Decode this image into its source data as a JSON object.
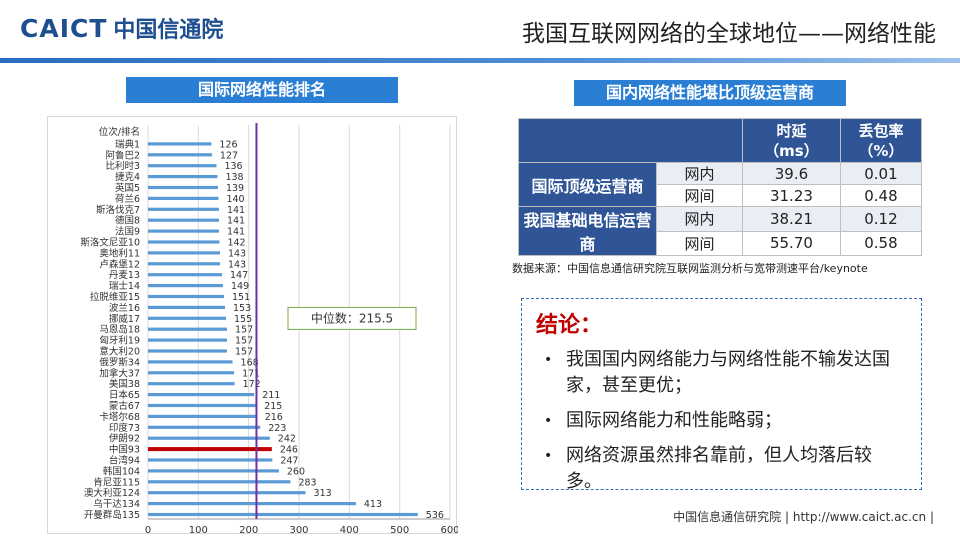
{
  "header": {
    "logo_en": "CAICT",
    "logo_cn": "中国信通院",
    "title": "我国互联网网络的全球地位——网络性能"
  },
  "left_label": "国际网络性能排名",
  "right_label": "国内网络性能堪比顶级运营商",
  "chart_data": {
    "type": "bar",
    "orientation": "horizontal",
    "category_header": "位次/排名",
    "categories": [
      "瑞典1",
      "阿鲁巴2",
      "比利时3",
      "捷克4",
      "英国5",
      "荷兰6",
      "斯洛伐克7",
      "德国8",
      "法国9",
      "斯洛文尼亚10",
      "奥地利11",
      "卢森堡12",
      "丹麦13",
      "瑞士14",
      "拉脱维亚15",
      "波兰16",
      "挪威17",
      "马恩岛18",
      "匈牙利19",
      "意大利20",
      "俄罗斯34",
      "加拿大37",
      "美国38",
      "日本65",
      "蒙古67",
      "卡塔尔68",
      "印度73",
      "伊朗92",
      "中国93",
      "台湾94",
      "韩国104",
      "肯尼亚115",
      "澳大利亚124",
      "乌干达134",
      "开曼群岛135"
    ],
    "values": [
      126,
      127,
      136,
      138,
      139,
      140,
      141,
      141,
      141,
      142,
      143,
      143,
      147,
      149,
      151,
      153,
      155,
      157,
      157,
      157,
      168,
      171,
      172,
      211,
      215,
      216,
      223,
      242,
      246,
      247,
      260,
      283,
      313,
      413,
      536
    ],
    "highlight_category": "中国93",
    "xlim": [
      0,
      600
    ],
    "xticks": [
      0,
      100,
      200,
      300,
      400,
      500,
      600
    ],
    "median": 215.5,
    "median_label": "中位数：215.5",
    "bar_color": "#5b9bd5",
    "highlight_color": "#c00000",
    "median_line_color": "#7030a0"
  },
  "table": {
    "headers": [
      "时延\n（ms）",
      "丢包率\n（%）"
    ],
    "groups": [
      {
        "name": "国际顶级运营商",
        "rows": [
          {
            "type": "网内",
            "latency": "39.6",
            "loss": "0.01"
          },
          {
            "type": "网间",
            "latency": "31.23",
            "loss": "0.48"
          }
        ]
      },
      {
        "name": "我国基础电信运营商",
        "rows": [
          {
            "type": "网内",
            "latency": "38.21",
            "loss": "0.12"
          },
          {
            "type": "网间",
            "latency": "55.70",
            "loss": "0.58"
          }
        ]
      }
    ]
  },
  "source": "数据来源：中国信息通信研究院互联网监测分析与宽带测速平台/keynote",
  "conclusion": {
    "title": "结论：",
    "bullet": "•",
    "items": [
      "我国国内网络能力与网络性能不输发达国家，甚至更优；",
      "国际网络能力和性能略弱；",
      "网络资源虽然排名靠前，但人均落后较多。"
    ]
  },
  "footer": "中国信息通信研究院   |   http://www.caict.ac.cn   |"
}
